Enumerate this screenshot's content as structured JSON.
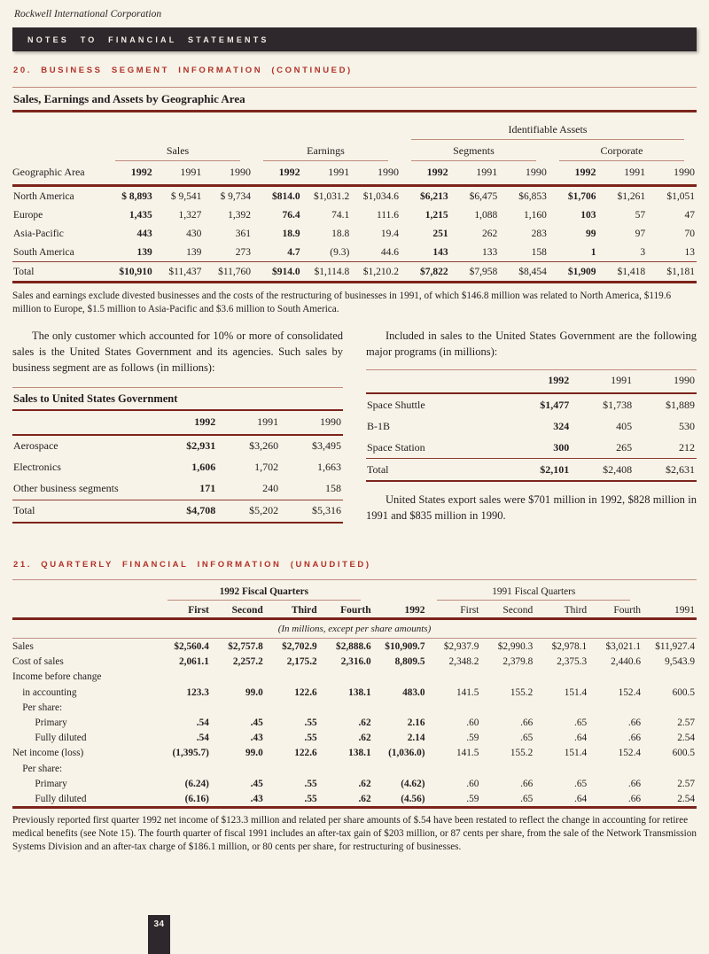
{
  "page": {
    "corp_name": "Rockwell International Corporation",
    "banner": "NOTES TO FINANCIAL STATEMENTS",
    "page_number": "34"
  },
  "section20": {
    "title": "20. BUSINESS SEGMENT INFORMATION (CONTINUED)",
    "geo": {
      "title": "Sales, Earnings and Assets by Geographic Area",
      "span_header": "Identifiable Assets",
      "groups": [
        "Sales",
        "Earnings",
        "Segments",
        "Corporate"
      ],
      "header": [
        "Geographic Area",
        "1992",
        "1991",
        "1990",
        "1992",
        "1991",
        "1990",
        "1992",
        "1991",
        "1990",
        "1992",
        "1991",
        "1990"
      ],
      "rows": [
        [
          "North America",
          "$ 8,893",
          "$ 9,541",
          "$ 9,734",
          "$814.0",
          "$1,031.2",
          "$1,034.6",
          "$6,213",
          "$6,475",
          "$6,853",
          "$1,706",
          "$1,261",
          "$1,051"
        ],
        [
          "Europe",
          "1,435",
          "1,327",
          "1,392",
          "76.4",
          "74.1",
          "111.6",
          "1,215",
          "1,088",
          "1,160",
          "103",
          "57",
          "47"
        ],
        [
          "Asia-Pacific",
          "443",
          "430",
          "361",
          "18.9",
          "18.8",
          "19.4",
          "251",
          "262",
          "283",
          "99",
          "97",
          "70"
        ],
        [
          "South America",
          "139",
          "139",
          "273",
          "4.7",
          "(9.3)",
          "44.6",
          "143",
          "133",
          "158",
          "1",
          "3",
          "13"
        ]
      ],
      "total": [
        "Total",
        "$10,910",
        "$11,437",
        "$11,760",
        "$914.0",
        "$1,114.8",
        "$1,210.2",
        "$7,822",
        "$7,958",
        "$8,454",
        "$1,909",
        "$1,418",
        "$1,181"
      ],
      "footnote": "Sales and earnings exclude divested businesses and the costs of the restructuring of businesses in 1991, of which $146.8 million was related to North America, $119.6 million to Europe, $1.5 million to Asia-Pacific and $3.6 million to South America."
    },
    "left_para": "The only customer which accounted for 10% or more of consolidated sales is the United States Government and its agencies. Such sales by business segment are as follows (in millions):",
    "gov_table": {
      "title": "Sales to United States Government",
      "header": [
        "",
        "1992",
        "1991",
        "1990"
      ],
      "rows": [
        [
          "Aerospace",
          "$2,931",
          "$3,260",
          "$3,495"
        ],
        [
          "Electronics",
          "1,606",
          "1,702",
          "1,663"
        ],
        [
          "Other business segments",
          "171",
          "240",
          "158"
        ]
      ],
      "total": [
        "Total",
        "$4,708",
        "$5,202",
        "$5,316"
      ]
    },
    "right_para": "Included in sales to the United States Government are the following major programs (in millions):",
    "programs_table": {
      "header": [
        "",
        "1992",
        "1991",
        "1990"
      ],
      "rows": [
        [
          "Space Shuttle",
          "$1,477",
          "$1,738",
          "$1,889"
        ],
        [
          "B-1B",
          "324",
          "405",
          "530"
        ],
        [
          "Space Station",
          "300",
          "265",
          "212"
        ]
      ],
      "total": [
        "Total",
        "$2,101",
        "$2,408",
        "$2,631"
      ]
    },
    "export_para": "United States export sales were $701 million in 1992, $828 million in 1991 and $835 million in 1990."
  },
  "section21": {
    "title": "21. QUARTERLY FINANCIAL INFORMATION (UNAUDITED)",
    "q_table": {
      "group_1992": "1992 Fiscal Quarters",
      "group_1991": "1991 Fiscal Quarters",
      "header": [
        "",
        "First",
        "Second",
        "Third",
        "Fourth",
        "1992",
        "First",
        "Second",
        "Third",
        "Fourth",
        "1991"
      ],
      "units_note": "(In millions, except per share amounts)",
      "rows": [
        [
          "Sales",
          "$2,560.4",
          "$2,757.8",
          "$2,702.9",
          "$2,888.6",
          "$10,909.7",
          "$2,937.9",
          "$2,990.3",
          "$2,978.1",
          "$3,021.1",
          "$11,927.4"
        ],
        [
          "Cost of sales",
          "2,061.1",
          "2,257.2",
          "2,175.2",
          "2,316.0",
          "8,809.5",
          "2,348.2",
          "2,379.8",
          "2,375.3",
          "2,440.6",
          "9,543.9"
        ],
        [
          "Income before change",
          "",
          "",
          "",
          "",
          "",
          "",
          "",
          "",
          "",
          ""
        ],
        [
          "    in accounting",
          "123.3",
          "99.0",
          "122.6",
          "138.1",
          "483.0",
          "141.5",
          "155.2",
          "151.4",
          "152.4",
          "600.5"
        ],
        [
          "    Per share:",
          "",
          "",
          "",
          "",
          "",
          "",
          "",
          "",
          "",
          ""
        ],
        [
          "         Primary",
          ".54",
          ".45",
          ".55",
          ".62",
          "2.16",
          ".60",
          ".66",
          ".65",
          ".66",
          "2.57"
        ],
        [
          "         Fully diluted",
          ".54",
          ".43",
          ".55",
          ".62",
          "2.14",
          ".59",
          ".65",
          ".64",
          ".66",
          "2.54"
        ],
        [
          "Net income (loss)",
          "(1,395.7)",
          "99.0",
          "122.6",
          "138.1",
          "(1,036.0)",
          "141.5",
          "155.2",
          "151.4",
          "152.4",
          "600.5"
        ],
        [
          "    Per share:",
          "",
          "",
          "",
          "",
          "",
          "",
          "",
          "",
          "",
          ""
        ],
        [
          "         Primary",
          "(6.24)",
          ".45",
          ".55",
          ".62",
          "(4.62)",
          ".60",
          ".66",
          ".65",
          ".66",
          "2.57"
        ],
        [
          "         Fully diluted",
          "(6.16)",
          ".43",
          ".55",
          ".62",
          "(4.56)",
          ".59",
          ".65",
          ".64",
          ".66",
          "2.54"
        ]
      ]
    },
    "footnote": "Previously reported first quarter 1992 net income of $123.3 million and related per share amounts of $.54 have been restated to reflect the change in accounting for retiree medical benefits (see Note 15). The fourth quarter of fiscal 1991 includes an after-tax gain of $203 million, or 87 cents per share, from the sale of the Network Transmission Systems Division and an after-tax charge of $186.1 million, or 80 cents per share, for restructuring of businesses."
  }
}
